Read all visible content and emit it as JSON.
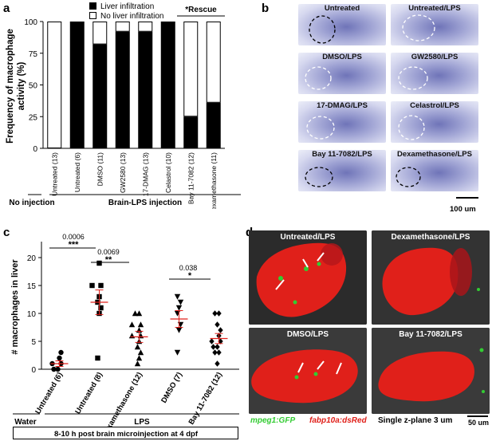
{
  "panel_labels": {
    "a": "a",
    "b": "b",
    "c": "c",
    "d": "d"
  },
  "panel_a": {
    "legend": [
      "Liver infiltration",
      "No liver infiltration"
    ],
    "rescue_label": "*Rescue",
    "ylabel": "Frequency of macrophage activity (%)",
    "groups": {
      "no_injection": "No injection",
      "brain_lps": "Brain-LPS injection"
    },
    "colors": {
      "liver": "#000000",
      "no_liver": "#ffffff"
    }
  },
  "panel_b": {
    "thumbs": [
      "Untreated",
      "Untreated/LPS",
      "DMSO/LPS",
      "GW2580/LPS",
      "17-DMAG/LPS",
      "Celastrol/LPS",
      "Bay 11-7082/LPS",
      "Dexamethasone/LPS"
    ],
    "scale": "100 um"
  },
  "panel_c": {
    "ylabel": "# macrophages in liver",
    "sig": [
      {
        "p": "0.0006",
        "stars": "***"
      },
      {
        "p": "0.0069",
        "stars": "**"
      },
      {
        "p": "0.038",
        "stars": "*"
      }
    ],
    "groups": {
      "water": "Water",
      "lps": "LPS"
    },
    "box": "8-10 h post brain microinjection at 4 dpf"
  },
  "panel_d": {
    "images": [
      "Untreated/LPS",
      "Dexamethasone/LPS",
      "DMSO/LPS",
      "Bay 11-7082/LPS"
    ],
    "legend": {
      "gfp": "mpeg1:GFP",
      "dsred": "fabp10a:dsRed",
      "plane": "Single z-plane 3 um"
    },
    "scale": "50 um",
    "colors": {
      "gfp": "#33cc33",
      "dsred": "#e0201a"
    }
  },
  "chart_data": [
    {
      "type": "bar",
      "title": "",
      "ylabel": "Frequency of macrophage activity (%)",
      "ylim": [
        0,
        100
      ],
      "yticks": [
        0,
        25,
        50,
        75,
        100
      ],
      "categories": [
        "Untreated (13)",
        "Untreated (6)",
        "DMSO (11)",
        "GW2580 (13)",
        "17-DMAG (13)",
        "Celastrol (10)",
        "Bay 11-7082 (12)",
        "Dexamethasone (11)"
      ],
      "series": [
        {
          "name": "Liver infiltration",
          "values": [
            0,
            100,
            82,
            92,
            92,
            100,
            25,
            36
          ]
        },
        {
          "name": "No liver infiltration",
          "values": [
            100,
            0,
            18,
            8,
            8,
            0,
            75,
            64
          ]
        }
      ],
      "stacked": true
    },
    {
      "type": "scatter",
      "title": "",
      "ylabel": "# macrophages in liver",
      "ylim": [
        0,
        20
      ],
      "yticks": [
        0,
        5,
        10,
        15,
        20
      ],
      "categories": [
        "Untreated (6)",
        "Untreated (8)",
        "Dexamethasone (12)",
        "DMSO (7)",
        "Bay 11-7082 (12)"
      ],
      "markers": [
        "circle",
        "square",
        "triangle-up",
        "triangle-down",
        "diamond"
      ],
      "points": [
        [
          0,
          0,
          1,
          1,
          2,
          3
        ],
        [
          2,
          10,
          11,
          12,
          13,
          15,
          15,
          19
        ],
        [
          1,
          2,
          3,
          4,
          5,
          6,
          6,
          7,
          8,
          8,
          10,
          10
        ],
        [
          3,
          7,
          8,
          10,
          11,
          12,
          13
        ],
        [
          1,
          3,
          3,
          4,
          4,
          5,
          5,
          6,
          7,
          8,
          10,
          10
        ]
      ],
      "means": [
        1,
        12,
        5.8,
        9,
        5.5
      ],
      "sem": [
        0.5,
        2.2,
        1.0,
        1.5,
        0.9
      ]
    }
  ]
}
